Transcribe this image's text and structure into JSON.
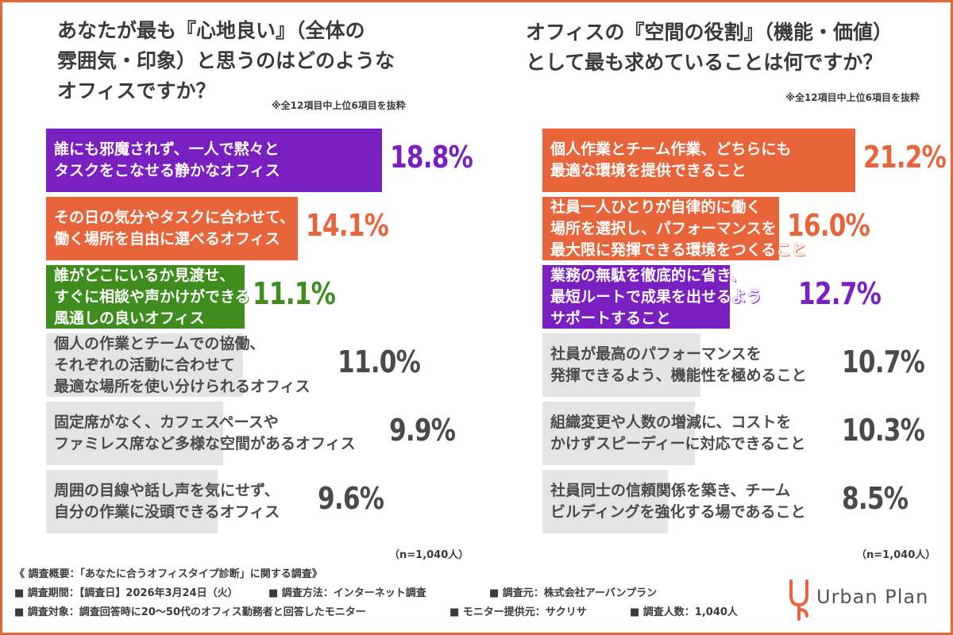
{
  "colors": {
    "frame": "#e8643a",
    "orange": "#e8643a",
    "purple": "#7a1fc0",
    "green": "#3f8d1e",
    "gray_bar": "#e4e4e4",
    "gray_text": "#4a4a4a"
  },
  "left": {
    "title_lines": [
      "あなたが最も『心地良い』（全体の",
      "雰囲気・印象）と思うのはどのような",
      "オフィスですか？"
    ],
    "note": "※全12項目中上位6項目を抜粋",
    "n_label": "（n=1,040人）",
    "chart_data": {
      "type": "bar",
      "orientation": "horizontal",
      "title": "あなたが最も『心地良い』（全体の雰囲気・印象）と思うのはどのようなオフィスですか？",
      "unit": "%",
      "categories": [
        "誰にも邪魔されず、一人で黙々とタスクをこなせる静かなオフィス",
        "その日の気分やタスクに合わせて、働く場所を自由に選べるオフィス",
        "誰がどこにいるか見渡せ、すぐに相談や声かけができる風通しの良いオフィス",
        "個人の作業とチームでの協働、それぞれの活動に合わせて最適な場所を使い分けられるオフィス",
        "固定席がなく、カフェスペースやファミレス席など多様な空間があるオフィス",
        "周囲の目線や話し声を気にせず、自分の作業に没頭できるオフィス"
      ],
      "values": [
        18.8,
        14.1,
        11.1,
        11.0,
        9.9,
        9.6
      ],
      "value_labels": [
        "18.8%",
        "14.1%",
        "11.1%",
        "11.0%",
        "9.9%",
        "9.6%"
      ],
      "label_lines": [
        [
          "誰にも邪魔されず、一人で黙々と",
          "タスクをこなせる静かなオフィス"
        ],
        [
          "その日の気分やタスクに合わせて、",
          "働く場所を自由に選べるオフィス"
        ],
        [
          "誰がどこにいるか見渡せ、",
          "すぐに相談や声かけができる",
          "風通しの良いオフィス"
        ],
        [
          "個人の作業とチームでの協働、",
          "それぞれの活動に合わせて",
          "最適な場所を使い分けられるオフィス"
        ],
        [
          "固定席がなく、カフェスペースや",
          "ファミレス席など多様な空間があるオフィス"
        ],
        [
          "周囲の目線や話し声を気にせず、",
          "自分の作業に没頭できるオフィス"
        ]
      ],
      "bar_colors": [
        "#7a1fc0",
        "#e8643a",
        "#3f8d1e",
        "#e4e4e4",
        "#e4e4e4",
        "#e4e4e4"
      ],
      "value_colors": [
        "#7a1fc0",
        "#e8643a",
        "#3f8d1e",
        "#4a4a4a",
        "#4a4a4a",
        "#4a4a4a"
      ],
      "highlighted": [
        true,
        true,
        true,
        false,
        false,
        false
      ]
    }
  },
  "right": {
    "title_lines": [
      "オフィスの『空間の役割』（機能・価値）",
      "として最も求めていることは何ですか？"
    ],
    "note": "※全12項目中上位6項目を抜粋",
    "n_label": "（n=1,040人）",
    "chart_data": {
      "type": "bar",
      "orientation": "horizontal",
      "title": "オフィスの『空間の役割』（機能・価値）として最も求めていることは何ですか？",
      "unit": "%",
      "categories": [
        "個人作業とチーム作業、どちらにも最適な環境を提供できること",
        "社員一人ひとりが自律的に働く場所を選択し、パフォーマンスを最大限に発揮できる環境をつくること",
        "業務の無駄を徹底的に省き、最短ルートで成果を出せるようサポートすること",
        "社員が最高のパフォーマンスを発揮できるよう、機能性を極めること",
        "組織変更や人数の増減に、コストをかけずスピーディーに対応できること",
        "社員同士の信頼関係を築き、チームビルディングを強化する場であること"
      ],
      "values": [
        21.2,
        16.0,
        12.7,
        10.7,
        10.3,
        8.5
      ],
      "value_labels": [
        "21.2%",
        "16.0%",
        "12.7%",
        "10.7%",
        "10.3%",
        "8.5%"
      ],
      "label_lines": [
        [
          "個人作業とチーム作業、どちらにも",
          "最適な環境を提供できること"
        ],
        [
          "社員一人ひとりが自律的に働く",
          "場所を選択し、パフォーマンスを",
          "最大限に発揮できる環境をつくること"
        ],
        [
          "業務の無駄を徹底的に省き、",
          "最短ルートで成果を出せるよう",
          "サポートすること"
        ],
        [
          "社員が最高のパフォーマンスを",
          "発揮できるよう、機能性を極めること"
        ],
        [
          "組織変更や人数の増減に、コストを",
          "かけずスピーディーに対応できること"
        ],
        [
          "社員同士の信頼関係を築き、チーム",
          "ビルディングを強化する場であること"
        ]
      ],
      "bar_colors": [
        "#e8643a",
        "#e8643a",
        "#7a1fc0",
        "#e4e4e4",
        "#e4e4e4",
        "#e4e4e4"
      ],
      "value_colors": [
        "#e8643a",
        "#e8643a",
        "#7a1fc0",
        "#4a4a4a",
        "#4a4a4a",
        "#4a4a4a"
      ],
      "highlighted": [
        true,
        true,
        true,
        false,
        false,
        false
      ]
    }
  },
  "footer": {
    "heading": "《 調査概要：「あなたに合うオフィスタイプ診断」に関する調査》",
    "period": "■ 調査期間：【調査日】2026年3月24日（火）",
    "method": "■ 調査方法：インターネット調査",
    "organizer": "■ 調査元：株式会社アーバンプラン",
    "target": "■ 調査対象：調査回答時に20〜50代のオフィス勤務者と回答したモニター",
    "provider": "■ モニター提供元：サクリサ",
    "count": "■ 調査人数：1,040人"
  },
  "logo": {
    "text": "Urban Plan",
    "icon": "urban-plan-logo-icon"
  }
}
